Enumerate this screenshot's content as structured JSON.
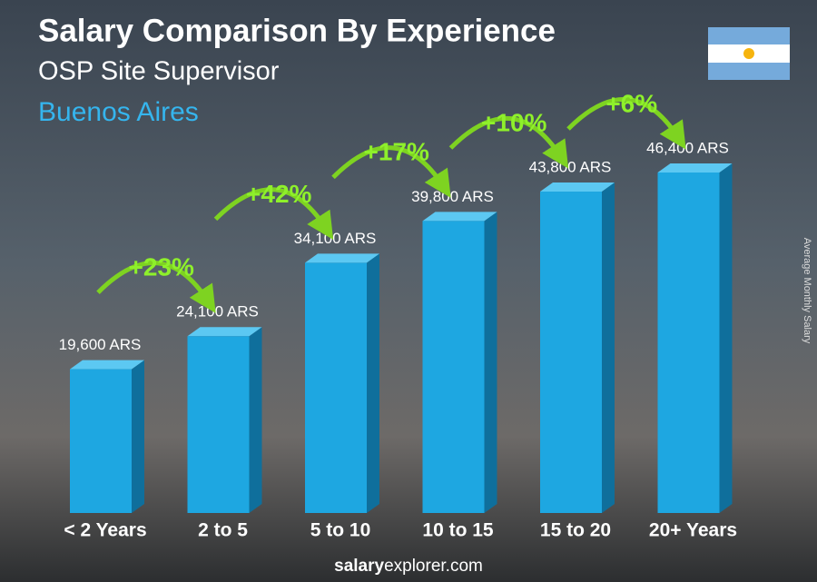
{
  "chart_data": {
    "type": "bar3d",
    "title": "Salary Comparison By Experience",
    "subtitle": "OSP Site Supervisor",
    "location": "Buenos Aires",
    "y_label": "Average Monthly Salary",
    "footer": {
      "bold": "salary",
      "rest": "explorer.com"
    },
    "categories": [
      "< 2 Years",
      "2 to 5",
      "5 to 10",
      "10 to 15",
      "15 to 20",
      "20+ Years"
    ],
    "values": [
      19600,
      24100,
      34100,
      39800,
      43800,
      46400
    ],
    "value_labels": [
      "19,600 ARS",
      "24,100 ARS",
      "34,100 ARS",
      "39,800 ARS",
      "43,800 ARS",
      "46,400 ARS"
    ],
    "changes": [
      "+23%",
      "+42%",
      "+17%",
      "+10%",
      "+6%"
    ],
    "color": "#1ea7e1"
  }
}
